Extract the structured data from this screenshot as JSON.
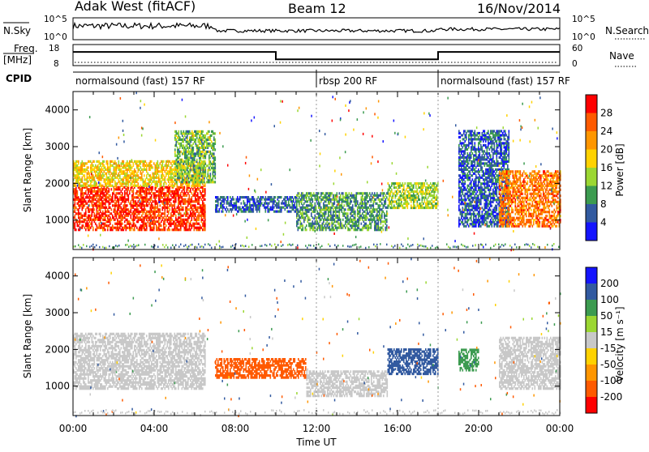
{
  "header": {
    "station": "Adak West (fitACF)",
    "beam": "Beam 12",
    "date": "16/Nov/2014"
  },
  "panels": {
    "nsky_label": "N.Sky",
    "nsearch_label": "N.Search",
    "freq_label_top": "Freq.",
    "freq_label_unit": "[MHz]",
    "nave_label": "Nave",
    "cpid_label": "CPID",
    "nsky_ticks": [
      "10^5",
      "10^0"
    ],
    "nsearch_ticks": [
      "10^5",
      "10^0"
    ],
    "freq_ticks": [
      "18",
      "8"
    ],
    "nave_ticks": [
      "60",
      "0"
    ],
    "cpid_segments": [
      {
        "label": "normalsound (fast) 157 RF",
        "start_h": 0
      },
      {
        "label": "rbsp 200 RF",
        "start_h": 12
      },
      {
        "label": "normalsound (fast) 157 RF",
        "start_h": 18
      }
    ]
  },
  "chart_data": [
    {
      "type": "line",
      "name_hint": "frequency",
      "x_unit": "hour UT",
      "x": [
        0,
        10,
        10,
        18,
        18,
        24
      ],
      "y": [
        14.5,
        14.5,
        11,
        11,
        14.5,
        14.5
      ],
      "ylim": [
        8,
        18
      ]
    },
    {
      "type": "heatmap",
      "panel": "power",
      "ylabel": "Slant Range [km]",
      "xlabel": "Time UT",
      "xlim": [
        0,
        24
      ],
      "ylim": [
        200,
        4500
      ],
      "x_ticks": [
        "00:00",
        "04:00",
        "08:00",
        "12:00",
        "16:00",
        "20:00",
        "00:00"
      ],
      "y_ticks": [
        1000,
        2000,
        3000,
        4000
      ],
      "colorbar": {
        "label": "Power [dB]",
        "ticks": [
          28,
          24,
          20,
          16,
          12,
          8,
          4
        ],
        "colors": [
          "#ff0000",
          "#ff5a00",
          "#ff9600",
          "#ffd200",
          "#9bd732",
          "#3c9b50",
          "#325aa0",
          "#1414ff"
        ]
      },
      "regions": [
        {
          "t0": 0.0,
          "t1": 6.5,
          "r0": 700,
          "r1": 1900,
          "value": 28
        },
        {
          "t0": 0.0,
          "t1": 6.5,
          "r0": 1900,
          "r1": 2600,
          "value": 18
        },
        {
          "t0": 5.0,
          "t1": 7.0,
          "r0": 2000,
          "r1": 3400,
          "value": 12
        },
        {
          "t0": 7.0,
          "t1": 11.0,
          "r0": 1200,
          "r1": 1600,
          "value": 6
        },
        {
          "t0": 11.0,
          "t1": 15.5,
          "r0": 700,
          "r1": 1700,
          "value": 10
        },
        {
          "t0": 15.5,
          "t1": 18.0,
          "r0": 1300,
          "r1": 2000,
          "value": 14
        },
        {
          "t0": 19.0,
          "t1": 21.5,
          "r0": 800,
          "r1": 3400,
          "value": 6
        },
        {
          "t0": 21.0,
          "t1": 24.0,
          "r0": 800,
          "r1": 2300,
          "value": 24
        }
      ]
    },
    {
      "type": "heatmap",
      "panel": "velocity",
      "ylabel": "Slant Range [km]",
      "xlabel": "Time UT",
      "xlim": [
        0,
        24
      ],
      "ylim": [
        200,
        4500
      ],
      "x_ticks": [
        "00:00",
        "04:00",
        "08:00",
        "12:00",
        "16:00",
        "20:00",
        "00:00"
      ],
      "y_ticks": [
        1000,
        2000,
        3000,
        4000
      ],
      "colorbar": {
        "label": "Velocity [m s⁻¹]",
        "ticks": [
          200,
          100,
          50,
          15,
          -15,
          -50,
          -100,
          -200
        ],
        "colors": [
          "#1414ff",
          "#325aa0",
          "#3c9b50",
          "#9bd732",
          "#c8c8c8",
          "#ffd200",
          "#ff9600",
          "#ff5a00",
          "#ff0000"
        ]
      },
      "regions": [
        {
          "t0": 0.0,
          "t1": 6.5,
          "r0": 900,
          "r1": 2400,
          "value": 0
        },
        {
          "t0": 7.0,
          "t1": 11.5,
          "r0": 1200,
          "r1": 1700,
          "value": -150
        },
        {
          "t0": 11.5,
          "t1": 15.5,
          "r0": 700,
          "r1": 1400,
          "value": 0
        },
        {
          "t0": 15.5,
          "t1": 18.0,
          "r0": 1300,
          "r1": 2000,
          "value": 180
        },
        {
          "t0": 19.0,
          "t1": 20.0,
          "r0": 1400,
          "r1": 2000,
          "value": 60
        },
        {
          "t0": 21.0,
          "t1": 24.0,
          "r0": 900,
          "r1": 2300,
          "value": 0
        }
      ]
    }
  ]
}
